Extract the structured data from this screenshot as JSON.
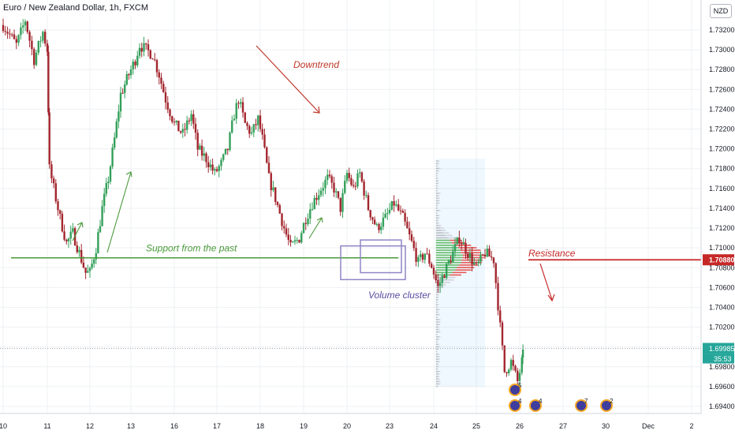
{
  "title": "Euro / New Zealand Dollar, 1h, FXCM",
  "currency_button": "NZD",
  "colors": {
    "up": "#26a69a",
    "down": "#ef5350",
    "candle_up": "#33a05a",
    "candle_down": "#a3262e",
    "support": "#4a9a3a",
    "resistance": "#c62828",
    "downtrend": "#c0392b",
    "cluster": "#5b4ba0",
    "grid": "#eef0f3"
  },
  "annotations": {
    "support": "Support from the past",
    "resistance": "Resistance",
    "downtrend": "Downtrend",
    "volume_cluster": "Volume cluster"
  },
  "price_labels": {
    "resistance": "1.70880",
    "last": "1.69985",
    "countdown": "35:53"
  },
  "events": [
    "5",
    "4",
    "4",
    "7",
    "2"
  ],
  "chart_data": {
    "type": "candlestick",
    "title": "Euro / New Zealand Dollar, 1h, FXCM",
    "x_ticks": [
      "10",
      "11",
      "12",
      "13",
      "16",
      "17",
      "18",
      "19",
      "20",
      "23",
      "24",
      "25",
      "26",
      "27",
      "30",
      "Dec",
      "2"
    ],
    "y_ticks": [
      "1.73200",
      "1.73000",
      "1.72800",
      "1.72600",
      "1.72400",
      "1.72200",
      "1.72000",
      "1.71800",
      "1.71600",
      "1.71400",
      "1.71200",
      "1.71000",
      "1.70800",
      "1.70600",
      "1.70400",
      "1.70200",
      "1.70000",
      "1.69800",
      "1.69600",
      "1.69400"
    ],
    "ylim": [
      1.693,
      1.7345
    ],
    "support_level": 1.709,
    "resistance_level": 1.7088,
    "last_price": 1.69985,
    "close_path": [
      [
        10.0,
        1.7325
      ],
      [
        10.3,
        1.7305
      ],
      [
        10.5,
        1.733
      ],
      [
        10.7,
        1.729
      ],
      [
        10.9,
        1.7318
      ],
      [
        11.0,
        1.73
      ],
      [
        11.05,
        1.718
      ],
      [
        11.15,
        1.716
      ],
      [
        11.3,
        1.713
      ],
      [
        11.45,
        1.7105
      ],
      [
        11.6,
        1.7115
      ],
      [
        11.75,
        1.7095
      ],
      [
        11.9,
        1.7075
      ],
      [
        12.0,
        1.7075
      ],
      [
        12.15,
        1.71
      ],
      [
        12.3,
        1.714
      ],
      [
        12.45,
        1.717
      ],
      [
        12.6,
        1.721
      ],
      [
        12.75,
        1.7255
      ],
      [
        12.95,
        1.7275
      ],
      [
        13.1,
        1.729
      ],
      [
        13.2,
        1.7305
      ],
      [
        13.35,
        1.73
      ],
      [
        13.5,
        1.7295
      ],
      [
        13.65,
        1.7275
      ],
      [
        13.8,
        1.725
      ],
      [
        14.0,
        1.7225
      ],
      [
        14.2,
        1.7215
      ],
      [
        14.4,
        1.7235
      ],
      [
        14.55,
        1.72
      ],
      [
        14.75,
        1.719
      ],
      [
        14.95,
        1.7175
      ],
      [
        15.1,
        1.7185
      ],
      [
        15.25,
        1.72
      ],
      [
        15.4,
        1.7235
      ],
      [
        15.5,
        1.725
      ],
      [
        15.65,
        1.7225
      ],
      [
        15.8,
        1.7215
      ],
      [
        15.95,
        1.723
      ],
      [
        16.05,
        1.721
      ],
      [
        16.2,
        1.717
      ],
      [
        16.35,
        1.715
      ],
      [
        16.55,
        1.712
      ],
      [
        16.7,
        1.71
      ],
      [
        16.9,
        1.711
      ],
      [
        17.05,
        1.713
      ],
      [
        17.2,
        1.7145
      ],
      [
        17.4,
        1.716
      ],
      [
        17.55,
        1.717
      ],
      [
        17.7,
        1.716
      ],
      [
        17.85,
        1.714
      ],
      [
        18.0,
        1.7175
      ],
      [
        18.15,
        1.716
      ],
      [
        18.3,
        1.7175
      ],
      [
        18.5,
        1.714
      ],
      [
        18.7,
        1.712
      ],
      [
        18.9,
        1.713
      ],
      [
        19.1,
        1.7145
      ],
      [
        19.3,
        1.713
      ],
      [
        19.5,
        1.7105
      ],
      [
        19.65,
        1.7085
      ],
      [
        19.8,
        1.7095
      ],
      [
        19.95,
        1.7082
      ],
      [
        20.1,
        1.706
      ],
      [
        20.25,
        1.7075
      ],
      [
        20.4,
        1.709
      ],
      [
        20.6,
        1.711
      ],
      [
        20.8,
        1.7095
      ],
      [
        21.0,
        1.708
      ],
      [
        21.2,
        1.7095
      ],
      [
        21.4,
        1.7088
      ],
      [
        21.55,
        1.702
      ],
      [
        21.65,
        1.6975
      ],
      [
        21.8,
        1.6985
      ],
      [
        21.95,
        1.6965
      ],
      [
        22.05,
        1.6985
      ],
      [
        22.1,
        1.69985
      ]
    ],
    "volume_profile": {
      "price_range": [
        1.696,
        1.719
      ],
      "peak_price": 1.709
    }
  }
}
